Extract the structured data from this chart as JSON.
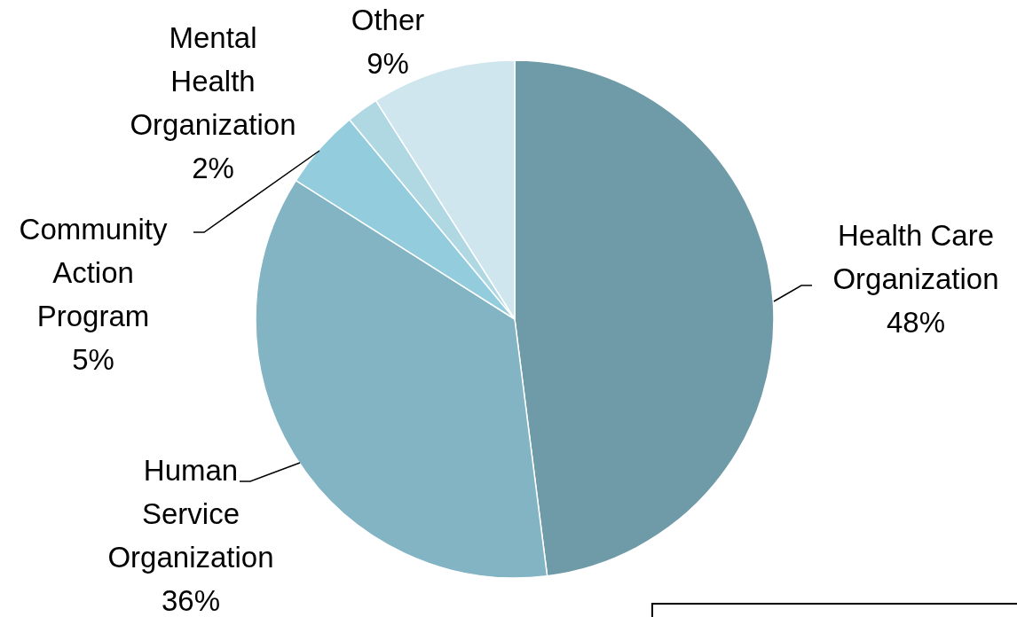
{
  "chart_data": {
    "type": "pie",
    "categories": [
      "Health Care Organization",
      "Human Service Organization",
      "Community Action Program",
      "Mental Health Organization",
      "Other"
    ],
    "values": [
      48,
      36,
      5,
      2,
      9
    ],
    "colors": [
      "#6f9aa7",
      "#82b4c4",
      "#93ccdc",
      "#b0d8e3",
      "#cfe6ee"
    ],
    "value_labels": [
      "48%",
      "36%",
      "5%",
      "2%",
      "9%"
    ]
  }
}
